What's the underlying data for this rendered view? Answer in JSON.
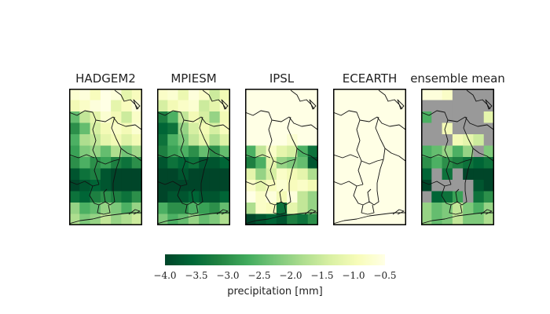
{
  "chart_data": {
    "type": "heatmap",
    "panels": [
      {
        "name": "HADGEM2",
        "grid": [
          [
            -0.7,
            -0.6,
            -0.9,
            -0.5,
            -0.6,
            -1.2,
            -0.9
          ],
          [
            -1.0,
            -0.8,
            -0.6,
            -0.5,
            -1.2,
            -0.9,
            -0.6
          ],
          [
            -2.4,
            -1.6,
            -1.2,
            -0.7,
            -1.0,
            -1.5,
            -0.8
          ],
          [
            -3.0,
            -2.4,
            -1.4,
            -1.0,
            -0.8,
            -1.0,
            -0.7
          ],
          [
            -2.6,
            -1.8,
            -1.6,
            -1.2,
            -1.0,
            -1.3,
            -1.0
          ],
          [
            -2.8,
            -2.2,
            -2.0,
            -2.4,
            -1.8,
            -2.3,
            -1.9
          ],
          [
            -3.0,
            -2.6,
            -3.0,
            -2.8,
            -3.2,
            -3.4,
            -3.0
          ],
          [
            -3.8,
            -3.4,
            -3.2,
            -3.8,
            -4.0,
            -4.0,
            -4.0
          ],
          [
            -4.0,
            -3.8,
            -3.6,
            -3.8,
            -4.0,
            -4.0,
            -4.0
          ],
          [
            -3.4,
            -3.6,
            -3.2,
            -3.0,
            -3.2,
            -3.4,
            -3.0
          ],
          [
            -2.0,
            -2.6,
            -2.4,
            -2.0,
            -2.2,
            -2.6,
            -2.0
          ],
          [
            -1.8,
            -2.2,
            -2.0,
            -1.6,
            -2.0,
            -1.8,
            -1.5
          ]
        ]
      },
      {
        "name": "MPIESM",
        "grid": [
          [
            -0.8,
            -0.7,
            -1.1,
            -0.6,
            -0.8,
            -1.5,
            -1.0
          ],
          [
            -1.4,
            -1.0,
            -0.8,
            -0.7,
            -1.5,
            -1.2,
            -0.8
          ],
          [
            -3.2,
            -2.6,
            -1.6,
            -1.0,
            -1.4,
            -2.0,
            -1.0
          ],
          [
            -3.6,
            -3.4,
            -2.0,
            -1.4,
            -1.0,
            -1.4,
            -0.9
          ],
          [
            -3.4,
            -2.6,
            -2.2,
            -1.6,
            -1.2,
            -1.8,
            -1.3
          ],
          [
            -3.2,
            -2.8,
            -2.6,
            -3.0,
            -2.4,
            -3.0,
            -2.4
          ],
          [
            -3.8,
            -3.4,
            -3.6,
            -3.4,
            -3.8,
            -3.8,
            -3.6
          ],
          [
            -4.0,
            -4.0,
            -3.8,
            -4.0,
            -4.0,
            -4.0,
            -4.0
          ],
          [
            -4.0,
            -4.0,
            -4.0,
            -4.0,
            -4.0,
            -4.0,
            -4.0
          ],
          [
            -4.0,
            -3.8,
            -3.8,
            -3.6,
            -3.8,
            -3.8,
            -3.6
          ],
          [
            -2.6,
            -3.0,
            -3.0,
            -2.6,
            -2.8,
            -3.0,
            -2.4
          ],
          [
            -2.2,
            -2.6,
            -2.4,
            -2.0,
            -2.4,
            -2.2,
            -1.8
          ]
        ]
      },
      {
        "name": "IPSL",
        "grid": [
          [
            -0.5,
            -0.5,
            -0.5,
            -0.5,
            -0.5,
            -0.5,
            -0.5
          ],
          [
            -0.5,
            -0.5,
            -0.5,
            -0.5,
            -0.5,
            -0.5,
            -0.5
          ],
          [
            -0.5,
            -0.5,
            -0.5,
            -0.5,
            -0.5,
            -0.5,
            -0.5
          ],
          [
            -0.5,
            -0.5,
            -0.5,
            -0.5,
            -0.5,
            -0.5,
            -0.5
          ],
          [
            -0.5,
            -0.5,
            -0.5,
            -0.5,
            -0.7,
            -0.5,
            -0.5
          ],
          [
            -2.6,
            -1.6,
            -0.8,
            -1.2,
            -1.4,
            -2.6,
            -3.4
          ],
          [
            -3.2,
            -2.6,
            -1.2,
            -2.0,
            -2.2,
            -2.4,
            -3.8
          ],
          [
            -1.2,
            -2.0,
            -1.4,
            -0.8,
            -1.0,
            -1.2,
            -1.8
          ],
          [
            -0.8,
            -1.2,
            -0.9,
            -0.7,
            -0.9,
            -0.8,
            -1.0
          ],
          [
            -0.5,
            -0.8,
            -0.6,
            -1.0,
            -0.6,
            -1.6,
            -2.0
          ],
          [
            -1.8,
            -0.8,
            -0.9,
            -3.4,
            -1.2,
            -1.6,
            -2.0
          ],
          [
            -4.0,
            -3.8,
            -3.6,
            -3.8,
            -3.2,
            -3.4,
            -3.0
          ]
        ]
      },
      {
        "name": "ECEARTH",
        "grid": [
          [
            -0.5,
            -0.5,
            -0.5,
            -0.5,
            -0.5,
            -0.5,
            -0.5
          ],
          [
            -0.5,
            -0.5,
            -0.5,
            -0.5,
            -0.5,
            -0.5,
            -0.5
          ],
          [
            -0.5,
            -0.5,
            -0.5,
            -0.5,
            -0.5,
            -0.5,
            -0.5
          ],
          [
            -0.5,
            -0.5,
            -0.5,
            -0.5,
            -0.5,
            -0.5,
            -0.5
          ],
          [
            -0.5,
            -0.5,
            -0.5,
            -0.5,
            -0.5,
            -0.5,
            -0.5
          ],
          [
            -0.5,
            -0.5,
            -0.5,
            -0.5,
            -0.5,
            -0.5,
            -0.5
          ],
          [
            -0.5,
            -0.5,
            -0.5,
            -0.5,
            -0.5,
            -0.5,
            -0.5
          ],
          [
            -0.5,
            -0.5,
            -0.5,
            -0.5,
            -0.5,
            -0.5,
            -0.5
          ],
          [
            -0.5,
            -0.5,
            -0.5,
            -0.5,
            -0.5,
            -0.5,
            -0.5
          ],
          [
            -0.5,
            -0.5,
            -0.5,
            -0.5,
            -0.5,
            -0.5,
            -0.5
          ],
          [
            -0.5,
            -0.5,
            -0.5,
            -0.5,
            -0.5,
            -0.5,
            -0.5
          ],
          [
            -0.5,
            -0.5,
            -0.5,
            -0.5,
            -0.5,
            -0.5,
            -0.5
          ]
        ]
      },
      {
        "name": "ensemble mean",
        "grid": [
          [
            -0.6,
            -0.6,
            -0.8,
            null,
            null,
            null,
            null
          ],
          [
            null,
            null,
            null,
            null,
            null,
            null,
            null
          ],
          [
            -2.6,
            null,
            null,
            null,
            null,
            null,
            -1.2
          ],
          [
            null,
            null,
            -1.0,
            null,
            null,
            null,
            null
          ],
          [
            null,
            null,
            null,
            -1.0,
            -1.2,
            -1.5,
            null
          ],
          [
            -2.6,
            -2.4,
            -2.0,
            -2.6,
            -2.0,
            null,
            -2.2
          ],
          [
            -3.0,
            -2.6,
            -3.0,
            -3.2,
            -3.4,
            -3.6,
            -3.4
          ],
          [
            -3.6,
            null,
            -3.4,
            null,
            -4.0,
            -4.0,
            -4.0
          ],
          [
            -4.0,
            null,
            null,
            null,
            null,
            -3.8,
            -4.0
          ],
          [
            null,
            -3.6,
            -3.4,
            -2.8,
            null,
            -3.4,
            -3.0
          ],
          [
            -2.0,
            -2.4,
            -2.2,
            -1.6,
            -2.2,
            -2.6,
            -2.0
          ],
          [
            -2.0,
            -2.4,
            -2.2,
            -1.6,
            -2.2,
            -2.2,
            -1.8
          ]
        ]
      }
    ],
    "no_data_color": "#999999",
    "colormap": [
      "#004529",
      "#006837",
      "#238443",
      "#41ab5d",
      "#78c679",
      "#addd8e",
      "#d9f0a3",
      "#f7fcb9",
      "#ffffe5"
    ],
    "vmin": -4.0,
    "vmax": -0.5,
    "colorbar": {
      "ticks": [
        -4.0,
        -3.5,
        -3.0,
        -2.5,
        -2.0,
        -1.5,
        -1.0,
        -0.5
      ],
      "tick_labels": [
        "−4.0",
        "−3.5",
        "−3.0",
        "−2.5",
        "−2.0",
        "−1.5",
        "−1.0",
        "−0.5"
      ],
      "label": "precipitation [mm]"
    }
  }
}
